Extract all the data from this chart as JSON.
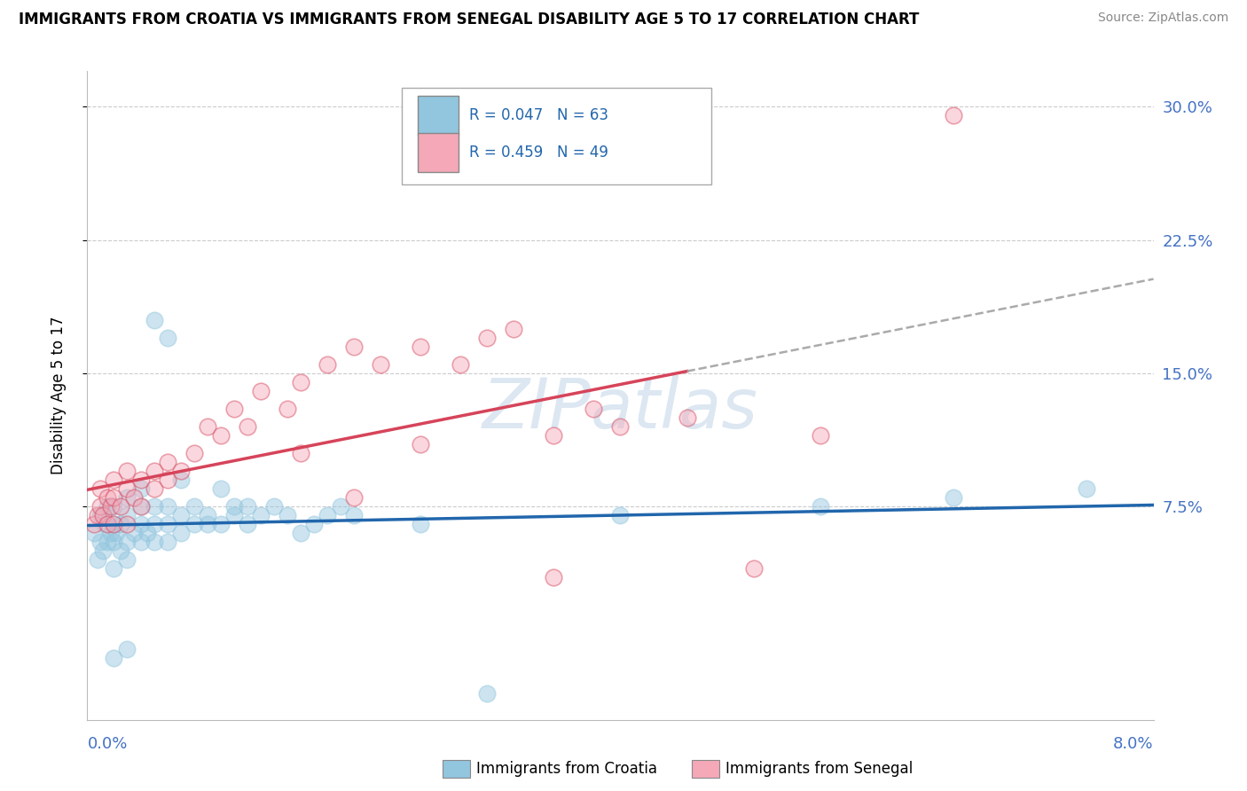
{
  "title": "IMMIGRANTS FROM CROATIA VS IMMIGRANTS FROM SENEGAL DISABILITY AGE 5 TO 17 CORRELATION CHART",
  "source": "Source: ZipAtlas.com",
  "ylabel": "Disability Age 5 to 17",
  "yticks": [
    0.075,
    0.15,
    0.225,
    0.3
  ],
  "ytick_labels": [
    "7.5%",
    "15.0%",
    "22.5%",
    "30.0%"
  ],
  "xlim": [
    0.0,
    0.08
  ],
  "ylim": [
    -0.045,
    0.32
  ],
  "croatia_R": 0.047,
  "croatia_N": 63,
  "senegal_R": 0.459,
  "senegal_N": 49,
  "croatia_color": "#92c5de",
  "senegal_color": "#f4a8b8",
  "croatia_line_color": "#2166ac",
  "senegal_line_color": "#d6445a",
  "senegal_line_solid_end": 0.045,
  "watermark": "ZIPatlas",
  "legend_label_croatia": "Immigrants from Croatia",
  "legend_label_senegal": "Immigrants from Senegal",
  "croatia_x": [
    0.0005,
    0.0008,
    0.001,
    0.001,
    0.0012,
    0.0013,
    0.0015,
    0.0015,
    0.0018,
    0.002,
    0.002,
    0.002,
    0.002,
    0.002,
    0.0022,
    0.0025,
    0.0025,
    0.003,
    0.003,
    0.003,
    0.003,
    0.003,
    0.0035,
    0.004,
    0.004,
    0.004,
    0.004,
    0.0045,
    0.005,
    0.005,
    0.005,
    0.005,
    0.006,
    0.006,
    0.006,
    0.006,
    0.007,
    0.007,
    0.007,
    0.008,
    0.008,
    0.009,
    0.009,
    0.01,
    0.01,
    0.011,
    0.011,
    0.012,
    0.012,
    0.013,
    0.014,
    0.015,
    0.016,
    0.017,
    0.018,
    0.019,
    0.02,
    0.025,
    0.03,
    0.04,
    0.055,
    0.065,
    0.075
  ],
  "croatia_y": [
    0.06,
    0.045,
    0.055,
    0.07,
    0.05,
    0.065,
    0.055,
    0.075,
    0.06,
    0.04,
    0.055,
    0.065,
    0.075,
    -0.01,
    0.06,
    0.05,
    0.065,
    0.045,
    0.055,
    0.07,
    0.08,
    -0.005,
    0.06,
    0.055,
    0.065,
    0.075,
    0.085,
    0.06,
    0.055,
    0.065,
    0.075,
    0.18,
    0.055,
    0.065,
    0.075,
    0.17,
    0.06,
    0.07,
    0.09,
    0.065,
    0.075,
    0.065,
    0.07,
    0.065,
    0.085,
    0.07,
    0.075,
    0.065,
    0.075,
    0.07,
    0.075,
    0.07,
    0.06,
    0.065,
    0.07,
    0.075,
    0.07,
    0.065,
    -0.03,
    0.07,
    0.075,
    0.08,
    0.085
  ],
  "senegal_x": [
    0.0005,
    0.0008,
    0.001,
    0.001,
    0.0012,
    0.0015,
    0.0015,
    0.0018,
    0.002,
    0.002,
    0.002,
    0.0025,
    0.003,
    0.003,
    0.003,
    0.0035,
    0.004,
    0.004,
    0.005,
    0.005,
    0.006,
    0.006,
    0.007,
    0.008,
    0.009,
    0.01,
    0.011,
    0.012,
    0.013,
    0.015,
    0.016,
    0.018,
    0.02,
    0.022,
    0.025,
    0.028,
    0.03,
    0.032,
    0.035,
    0.038,
    0.04,
    0.045,
    0.05,
    0.055,
    0.065,
    0.016,
    0.02,
    0.025,
    0.035
  ],
  "senegal_y": [
    0.065,
    0.07,
    0.075,
    0.085,
    0.07,
    0.065,
    0.08,
    0.075,
    0.065,
    0.08,
    0.09,
    0.075,
    0.065,
    0.085,
    0.095,
    0.08,
    0.075,
    0.09,
    0.085,
    0.095,
    0.09,
    0.1,
    0.095,
    0.105,
    0.12,
    0.115,
    0.13,
    0.12,
    0.14,
    0.13,
    0.145,
    0.155,
    0.165,
    0.155,
    0.165,
    0.155,
    0.17,
    0.175,
    0.115,
    0.13,
    0.12,
    0.125,
    0.04,
    0.115,
    0.295,
    0.105,
    0.08,
    0.11,
    0.035
  ]
}
